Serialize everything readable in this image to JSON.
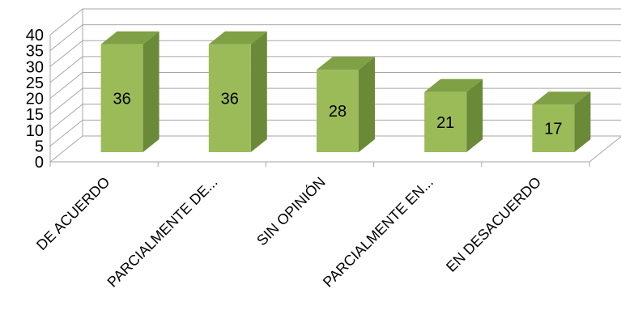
{
  "chart_data": {
    "type": "bar",
    "style": "3d-column",
    "categories": [
      "DE ACUERDO",
      "PARCIALMENTE DE...",
      "SIN OPINIÓN",
      "PARCIALMENTE EN...",
      "EN DESACUERDO"
    ],
    "values": [
      36,
      36,
      28,
      21,
      17
    ],
    "ylim": [
      0,
      40
    ],
    "yticks": [
      0,
      5,
      10,
      15,
      20,
      25,
      30,
      35,
      40
    ],
    "grid": true,
    "data_labels": true,
    "legend": "none",
    "colors": {
      "bar_front": "#9BBB59",
      "bar_side": "#6A8A38",
      "bar_top": "#7FA045",
      "grid": "#A6A6A6"
    }
  }
}
